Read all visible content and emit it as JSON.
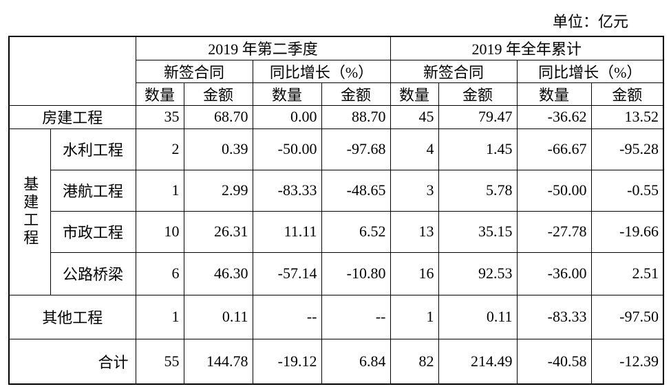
{
  "unit": "单位：亿元",
  "table": {
    "header": {
      "groups": [
        "2019 年第二季度",
        "2019 年全年累计"
      ],
      "sub": [
        "新签合同",
        "同比增长（%）",
        "新签合同",
        "同比增长（%）"
      ],
      "leaf": [
        "数量",
        "金额",
        "数量",
        "金额",
        "数量",
        "金额",
        "数量",
        "金额"
      ]
    },
    "group_label": "基建工程",
    "rows": [
      {
        "label": "房建工程",
        "cells": [
          "35",
          "68.70",
          "0.00",
          "88.70",
          "45",
          "79.47",
          "-36.62",
          "13.52"
        ]
      },
      {
        "label": "水利工程",
        "cells": [
          "2",
          "0.39",
          "-50.00",
          "-97.68",
          "4",
          "1.45",
          "-66.67",
          "-95.28"
        ]
      },
      {
        "label": "港航工程",
        "cells": [
          "1",
          "2.99",
          "-83.33",
          "-48.65",
          "3",
          "5.78",
          "-50.00",
          "-0.55"
        ]
      },
      {
        "label": "市政工程",
        "cells": [
          "10",
          "26.31",
          "11.11",
          "6.52",
          "13",
          "35.15",
          "-27.78",
          "-19.66"
        ]
      },
      {
        "label": "公路桥梁",
        "cells": [
          "6",
          "46.30",
          "-57.14",
          "-10.80",
          "16",
          "92.53",
          "-36.00",
          "2.51"
        ]
      },
      {
        "label": "其他工程",
        "cells": [
          "1",
          "0.11",
          "--",
          "--",
          "1",
          "0.11",
          "-83.33",
          "-97.50"
        ]
      },
      {
        "label": "合计",
        "cells": [
          "55",
          "144.78",
          "-19.12",
          "6.84",
          "82",
          "214.49",
          "-40.58",
          "-12.39"
        ]
      }
    ]
  }
}
